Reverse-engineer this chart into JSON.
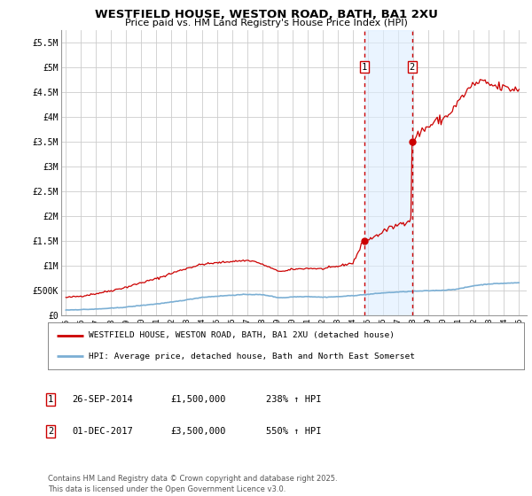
{
  "title": "WESTFIELD HOUSE, WESTON ROAD, BATH, BA1 2XU",
  "subtitle": "Price paid vs. HM Land Registry's House Price Index (HPI)",
  "background_color": "#ffffff",
  "plot_bg_color": "#ffffff",
  "grid_color": "#cccccc",
  "hpi_color": "#7bafd4",
  "property_color": "#cc0000",
  "ylim": [
    0,
    5750000
  ],
  "xlim_start": 1994.7,
  "xlim_end": 2025.5,
  "yticks": [
    0,
    500000,
    1000000,
    1500000,
    2000000,
    2500000,
    3000000,
    3500000,
    4000000,
    4500000,
    5000000,
    5500000
  ],
  "ytick_labels": [
    "£0",
    "£500K",
    "£1M",
    "£1.5M",
    "£2M",
    "£2.5M",
    "£3M",
    "£3.5M",
    "£4M",
    "£4.5M",
    "£5M",
    "£5.5M"
  ],
  "xticks": [
    1995,
    1996,
    1997,
    1998,
    1999,
    2000,
    2001,
    2002,
    2003,
    2004,
    2005,
    2006,
    2007,
    2008,
    2009,
    2010,
    2011,
    2012,
    2013,
    2014,
    2015,
    2016,
    2017,
    2018,
    2019,
    2020,
    2021,
    2022,
    2023,
    2024,
    2025
  ],
  "sale1_date": 2014.74,
  "sale1_price": 1500000,
  "sale1_label": "1",
  "sale2_date": 2017.92,
  "sale2_price": 3500000,
  "sale2_label": "2",
  "shade_color": "#ddeeff",
  "shade_alpha": 0.6,
  "legend_entry1": "WESTFIELD HOUSE, WESTON ROAD, BATH, BA1 2XU (detached house)",
  "legend_entry2": "HPI: Average price, detached house, Bath and North East Somerset",
  "table_row1": [
    "1",
    "26-SEP-2014",
    "£1,500,000",
    "238% ↑ HPI"
  ],
  "table_row2": [
    "2",
    "01-DEC-2017",
    "£3,500,000",
    "550% ↑ HPI"
  ],
  "footer": "Contains HM Land Registry data © Crown copyright and database right 2025.\nThis data is licensed under the Open Government Licence v3.0."
}
